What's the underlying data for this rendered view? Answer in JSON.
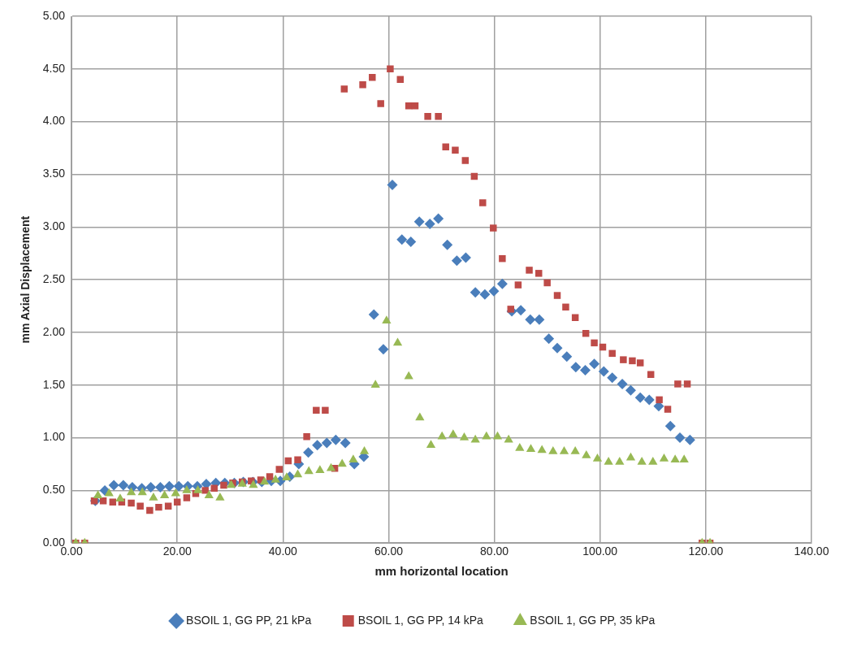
{
  "chart_data": {
    "type": "scatter",
    "xlabel": "mm horizontal location",
    "ylabel": "mm Axial Displacement",
    "xlim": [
      0,
      140
    ],
    "xticks": [
      {
        "value": 0,
        "label": "0.00"
      },
      {
        "value": 20,
        "label": "20.00"
      },
      {
        "value": 40,
        "label": "40.00"
      },
      {
        "value": 60,
        "label": "60.00"
      },
      {
        "value": 80,
        "label": "80.00"
      },
      {
        "value": 100,
        "label": "100.00"
      },
      {
        "value": 120,
        "label": "120.00"
      },
      {
        "value": 140,
        "label": "140.00"
      }
    ],
    "ylim": [
      0,
      5
    ],
    "yticks": [
      {
        "value": 0,
        "label": "0.00"
      },
      {
        "value": 0.5,
        "label": "0.50"
      },
      {
        "value": 1,
        "label": "1.00"
      },
      {
        "value": 1.5,
        "label": "1.50"
      },
      {
        "value": 2,
        "label": "2.00"
      },
      {
        "value": 2.5,
        "label": "2.50"
      },
      {
        "value": 3,
        "label": "3.00"
      },
      {
        "value": 3.5,
        "label": "3.50"
      },
      {
        "value": 4,
        "label": "4.00"
      },
      {
        "value": 4.5,
        "label": "4.50"
      },
      {
        "value": 5,
        "label": "5.00"
      }
    ],
    "grid": true,
    "legend": "bottom",
    "series": [
      {
        "name": "BSOIL 1, GG PP, 21 kPa",
        "color": "#4a7ebb",
        "marker": "diamond",
        "x": [
          4.5,
          6.3,
          8.0,
          9.8,
          11.5,
          13.3,
          15.0,
          16.8,
          18.5,
          20.3,
          22.0,
          23.8,
          25.5,
          27.3,
          29.0,
          30.8,
          32.5,
          34.3,
          36.0,
          37.8,
          39.5,
          41.3,
          43.0,
          44.8,
          46.5,
          48.3,
          50.0,
          51.8,
          53.5,
          55.3,
          57.2,
          59.0,
          60.7,
          62.5,
          64.2,
          65.8,
          67.8,
          69.4,
          71.1,
          72.9,
          74.6,
          76.4,
          78.2,
          79.9,
          81.5,
          83.3,
          85.0,
          86.8,
          88.5,
          90.3,
          91.9,
          93.7,
          95.4,
          97.2,
          98.9,
          100.7,
          102.3,
          104.2,
          105.8,
          107.6,
          109.3,
          111.1,
          113.3,
          115.1,
          117.0
        ],
        "values": [
          0.4,
          0.5,
          0.55,
          0.55,
          0.53,
          0.52,
          0.53,
          0.53,
          0.54,
          0.54,
          0.54,
          0.54,
          0.56,
          0.57,
          0.57,
          0.57,
          0.58,
          0.58,
          0.58,
          0.59,
          0.59,
          0.63,
          0.75,
          0.86,
          0.93,
          0.95,
          0.98,
          0.95,
          0.75,
          0.82,
          2.17,
          1.84,
          3.4,
          2.88,
          2.86,
          3.05,
          3.03,
          3.08,
          2.83,
          2.68,
          2.71,
          2.38,
          2.36,
          2.39,
          2.46,
          2.2,
          2.21,
          2.12,
          2.12,
          1.94,
          1.85,
          1.77,
          1.67,
          1.64,
          1.7,
          1.63,
          1.57,
          1.51,
          1.45,
          1.38,
          1.36,
          1.3,
          1.11,
          1.0,
          0.98
        ]
      },
      {
        "name": "BSOIL 1, GG PP, 14 kPa",
        "color": "#be4b48",
        "marker": "square",
        "x": [
          0.8,
          2.5,
          4.3,
          6.0,
          7.8,
          9.5,
          11.3,
          13.0,
          14.8,
          16.5,
          18.3,
          20.0,
          21.8,
          23.5,
          25.3,
          27.0,
          28.8,
          30.5,
          32.3,
          34.0,
          35.8,
          37.5,
          39.3,
          41.0,
          42.8,
          44.5,
          46.3,
          48.0,
          49.8,
          51.6,
          55.1,
          56.9,
          58.5,
          60.3,
          62.2,
          63.8,
          65.0,
          67.4,
          69.4,
          70.8,
          72.6,
          74.5,
          76.2,
          77.8,
          79.8,
          81.5,
          83.1,
          84.5,
          86.6,
          88.4,
          90.0,
          91.9,
          93.5,
          95.3,
          97.3,
          98.9,
          100.5,
          102.3,
          104.4,
          106.1,
          107.6,
          109.6,
          111.2,
          112.8,
          114.7,
          116.5,
          119.3,
          120.8
        ],
        "values": [
          0,
          0,
          0.4,
          0.4,
          0.39,
          0.39,
          0.38,
          0.35,
          0.31,
          0.34,
          0.35,
          0.39,
          0.43,
          0.47,
          0.5,
          0.52,
          0.55,
          0.57,
          0.58,
          0.59,
          0.6,
          0.63,
          0.7,
          0.78,
          0.79,
          1.01,
          1.26,
          1.26,
          0.71,
          4.31,
          4.35,
          4.42,
          4.17,
          4.5,
          4.4,
          4.15,
          4.15,
          4.05,
          4.05,
          3.76,
          3.73,
          3.63,
          3.48,
          3.23,
          2.99,
          2.7,
          2.22,
          2.45,
          2.59,
          2.56,
          2.47,
          2.35,
          2.24,
          2.14,
          1.99,
          1.9,
          1.86,
          1.8,
          1.74,
          1.73,
          1.71,
          1.6,
          1.36,
          1.27,
          1.51,
          1.51,
          0,
          0
        ]
      },
      {
        "name": "BSOIL 1, GG PP, 35 kPa",
        "color": "#98b954",
        "marker": "triangle",
        "x": [
          0.8,
          2.5,
          5.0,
          7.1,
          9.2,
          11.3,
          13.4,
          15.5,
          17.6,
          19.7,
          21.8,
          23.9,
          26.0,
          28.1,
          30.2,
          32.3,
          34.4,
          36.5,
          38.6,
          40.7,
          42.8,
          44.9,
          47.0,
          49.1,
          51.2,
          53.3,
          55.4,
          57.5,
          59.6,
          61.7,
          63.8,
          65.9,
          68.0,
          70.1,
          72.2,
          74.3,
          76.4,
          78.5,
          80.6,
          82.7,
          84.8,
          86.9,
          89.0,
          91.1,
          93.2,
          95.3,
          97.4,
          99.5,
          101.6,
          103.7,
          105.8,
          107.9,
          110.0,
          112.1,
          114.2,
          115.9,
          119.3,
          120.8
        ],
        "values": [
          0,
          0,
          0.45,
          0.47,
          0.42,
          0.48,
          0.48,
          0.43,
          0.45,
          0.47,
          0.5,
          0.5,
          0.45,
          0.43,
          0.55,
          0.56,
          0.55,
          0.58,
          0.6,
          0.62,
          0.65,
          0.68,
          0.69,
          0.71,
          0.75,
          0.79,
          0.87,
          1.5,
          2.11,
          1.9,
          1.58,
          1.19,
          0.93,
          1.01,
          1.03,
          1.0,
          0.98,
          1.01,
          1.01,
          0.98,
          0.9,
          0.89,
          0.88,
          0.87,
          0.87,
          0.87,
          0.83,
          0.8,
          0.77,
          0.77,
          0.81,
          0.77,
          0.77,
          0.8,
          0.79,
          0.79,
          0,
          0
        ]
      }
    ]
  }
}
